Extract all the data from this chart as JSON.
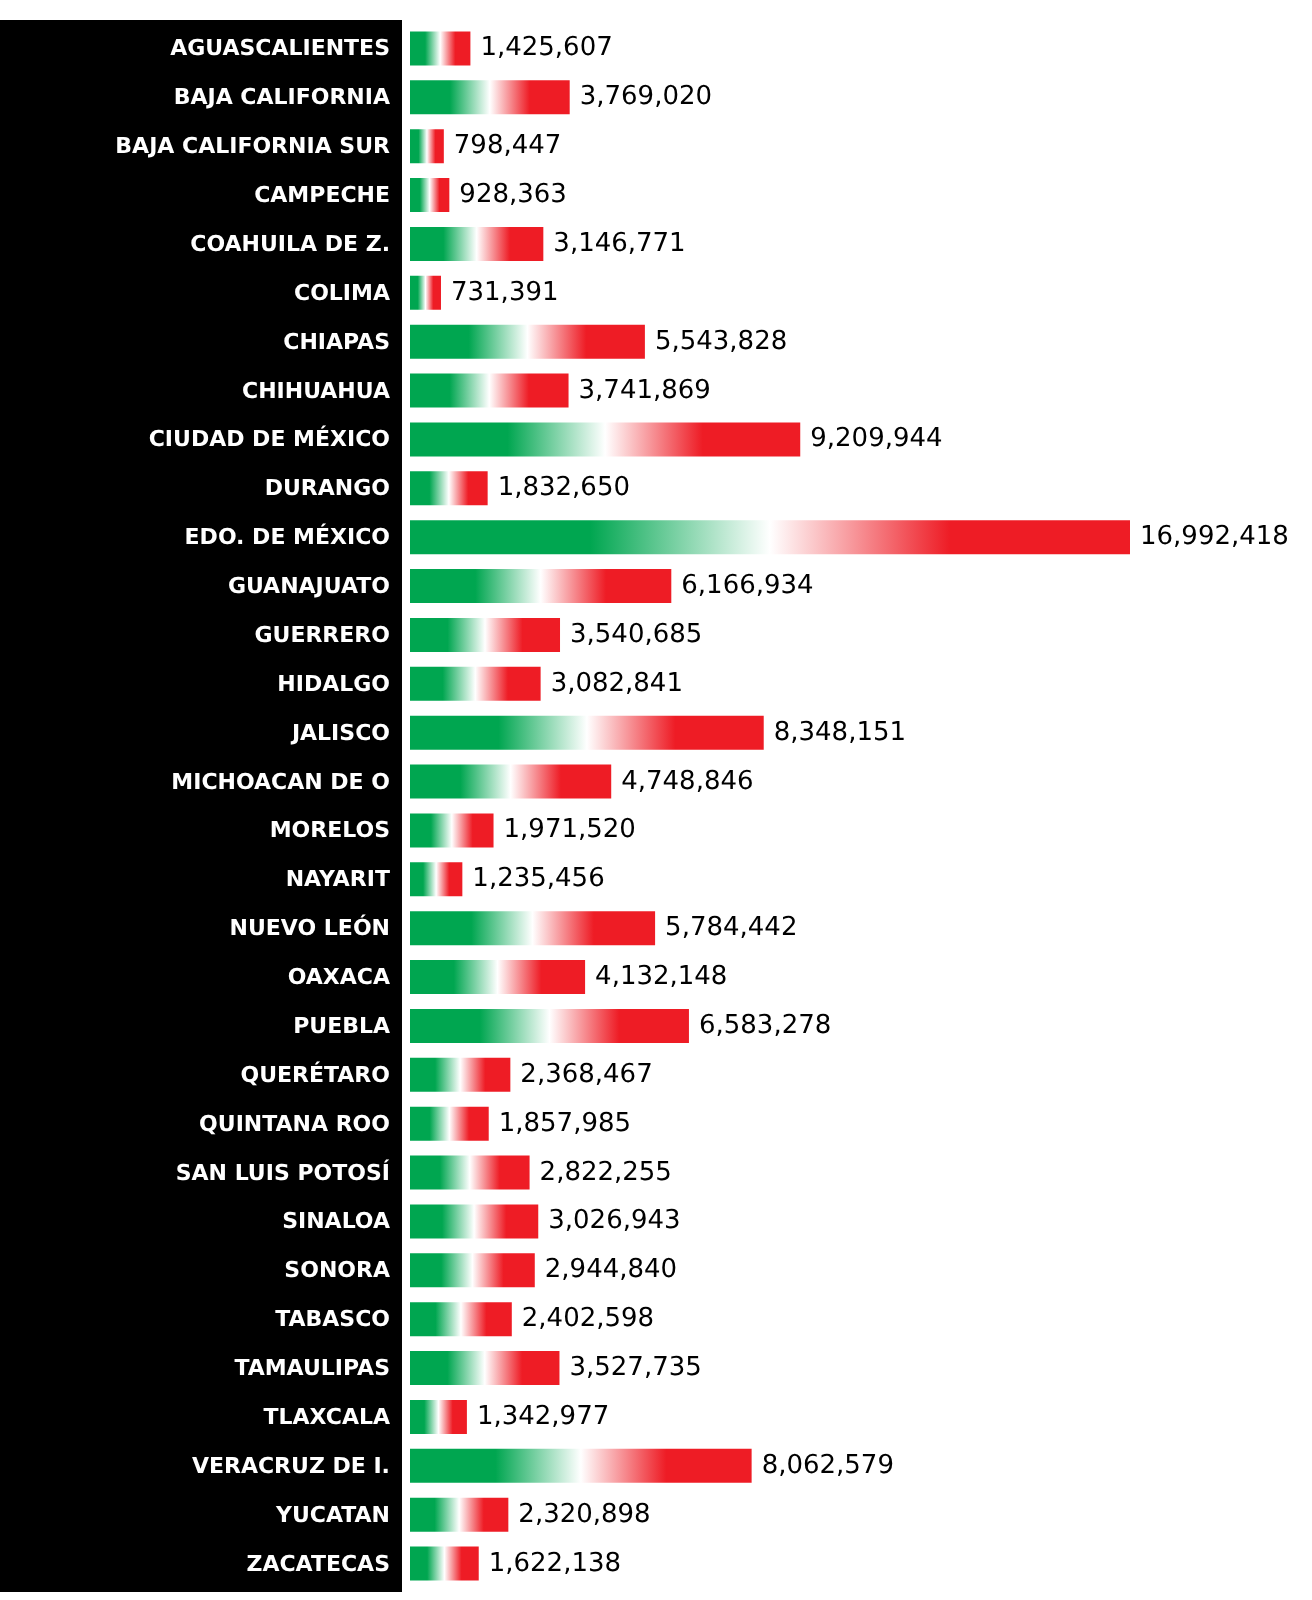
{
  "chart_data": {
    "type": "bar",
    "orientation": "horizontal",
    "value_labels": [
      "1,425,607",
      "3,769,020",
      "798,447",
      "928,363",
      "3,146,771",
      "731,391",
      "5,543,828",
      "3,741,869",
      "9,209,944",
      "1,832,650",
      "16,992,418",
      "6,166,934",
      "3,540,685",
      "3,082,841",
      "8,348,151",
      "4,748,846",
      "1,971,520",
      "1,235,456",
      "5,784,442",
      "4,132,148",
      "6,583,278",
      "2,368,467",
      "1,857,985",
      "2,822,255",
      "3,026,943",
      "2,944,840",
      "2,402,598",
      "3,527,735",
      "1,342,977",
      "8,062,579",
      "2,320,898",
      "1,622,138"
    ],
    "color": "#00a650",
    "categories": [
      "AGUASCALIENTES",
      "BAJA CALIFORNIA",
      "BAJA CALIFORNIA SUR",
      "CAMPECHE",
      "COAHUILA DE Z.",
      "COLIMA",
      "CHIAPAS",
      "CHIHUAHUA",
      "CIUDAD DE MÉXICO",
      "DURANGO",
      "EDO. DE MÉXICO",
      "GUANAJUATO",
      "GUERRERO",
      "HIDALGO",
      "JALISCO",
      "MICHOACAN DE O",
      "MORELOS",
      "NAYARIT",
      "NUEVO LEÓN",
      "OAXACA",
      "PUEBLA",
      "QUERÉTARO",
      "QUINTANA ROO",
      "SAN LUIS POTOSÍ",
      "SINALOA",
      "SONORA",
      "TABASCO",
      "TAMAULIPAS",
      "TLAXCALA",
      "VERACRUZ DE I.",
      "YUCATAN",
      "ZACATECAS"
    ],
    "values": [
      1425607,
      3769020,
      798447,
      928363,
      3146771,
      731391,
      5543828,
      3741869,
      9209944,
      1832650,
      16992418,
      6166934,
      3540685,
      3082841,
      8348151,
      4748846,
      1971520,
      1235456,
      5784442,
      4132148,
      6583278,
      2368467,
      1857985,
      2822255,
      3026943,
      2944840,
      2402598,
      3527735,
      1342977,
      8062579,
      2320898,
      1622138
    ]
  }
}
